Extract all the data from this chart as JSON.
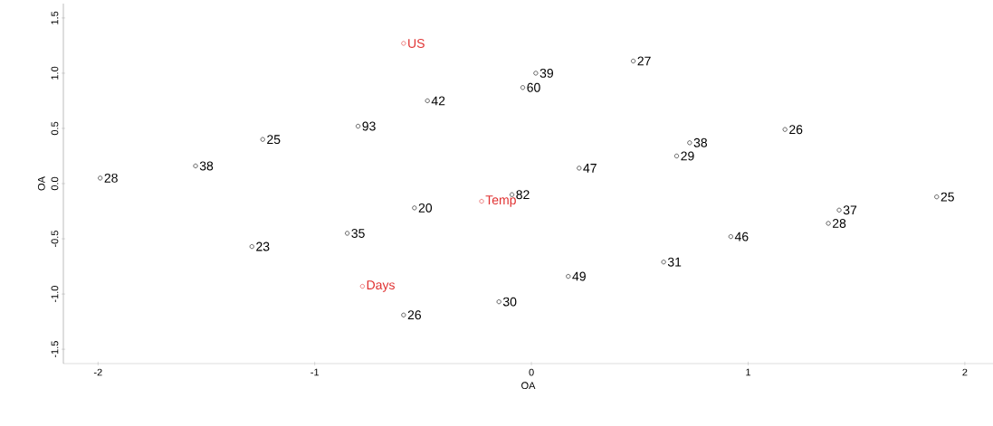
{
  "chart_data": {
    "type": "scatter",
    "xlabel": "OA",
    "ylabel": "OA",
    "xlim": [
      -2.16,
      2.13
    ],
    "ylim": [
      -1.63,
      1.63
    ],
    "xticks": [
      -2,
      -1,
      0,
      1,
      2
    ],
    "yticks": [
      {
        "value": -1.5,
        "label": "-1.5"
      },
      {
        "value": -1.0,
        "label": "-1.0"
      },
      {
        "value": -0.5,
        "label": "-0.5"
      },
      {
        "value": 0.0,
        "label": "0.0"
      },
      {
        "value": 0.5,
        "label": "0.5"
      },
      {
        "value": 1.0,
        "label": "1.0"
      },
      {
        "value": 1.5,
        "label": "1.5"
      }
    ],
    "marker": "circle",
    "grid": false,
    "series": [
      {
        "color": "#000000",
        "x": [
          -0.48,
          -0.8,
          -1.24,
          -1.55,
          -1.99,
          0.02,
          -0.04,
          0.47,
          1.17,
          0.73,
          0.67,
          0.22,
          -0.09,
          -0.54,
          -0.85,
          -1.29,
          -0.59,
          -0.15,
          0.17,
          0.61,
          0.92,
          1.37,
          1.42,
          1.87
        ],
        "values": [
          0.75,
          0.52,
          0.4,
          0.16,
          0.05,
          1.0,
          0.87,
          1.11,
          0.49,
          0.37,
          0.25,
          0.14,
          -0.1,
          -0.22,
          -0.45,
          -0.57,
          -1.19,
          -1.07,
          -0.84,
          -0.71,
          -0.48,
          -0.36,
          -0.24,
          -0.12
        ]
      },
      {
        "color": "#e03030",
        "x": [
          -0.59,
          -0.23,
          -0.78
        ],
        "values": [
          1.27,
          -0.16,
          -0.93
        ]
      }
    ],
    "annotations": [
      {
        "text": "42",
        "x": -0.48,
        "y": 0.75
      },
      {
        "text": "93",
        "x": -0.8,
        "y": 0.52
      },
      {
        "text": "25",
        "x": -1.24,
        "y": 0.4
      },
      {
        "text": "38",
        "x": -1.55,
        "y": 0.16
      },
      {
        "text": "28",
        "x": -1.99,
        "y": 0.05
      },
      {
        "text": "39",
        "x": 0.02,
        "y": 1.0
      },
      {
        "text": "60",
        "x": -0.04,
        "y": 0.87
      },
      {
        "text": "27",
        "x": 0.47,
        "y": 1.11
      },
      {
        "text": "26",
        "x": 1.17,
        "y": 0.49
      },
      {
        "text": "38",
        "x": 0.73,
        "y": 0.37
      },
      {
        "text": "29",
        "x": 0.67,
        "y": 0.25
      },
      {
        "text": "47",
        "x": 0.22,
        "y": 0.14
      },
      {
        "text": "82",
        "x": -0.09,
        "y": -0.1
      },
      {
        "text": "20",
        "x": -0.54,
        "y": -0.22
      },
      {
        "text": "35",
        "x": -0.85,
        "y": -0.45
      },
      {
        "text": "23",
        "x": -1.29,
        "y": -0.57
      },
      {
        "text": "26",
        "x": -0.59,
        "y": -1.19
      },
      {
        "text": "30",
        "x": -0.15,
        "y": -1.07
      },
      {
        "text": "49",
        "x": 0.17,
        "y": -0.84
      },
      {
        "text": "31",
        "x": 0.61,
        "y": -0.71
      },
      {
        "text": "46",
        "x": 0.92,
        "y": -0.48
      },
      {
        "text": "28",
        "x": 1.37,
        "y": -0.36
      },
      {
        "text": "37",
        "x": 1.42,
        "y": -0.24
      },
      {
        "text": "25",
        "x": 1.87,
        "y": -0.12
      },
      {
        "text": "US",
        "x": -0.59,
        "y": 1.27
      },
      {
        "text": "Temp",
        "x": -0.23,
        "y": -0.16
      },
      {
        "text": "Days",
        "x": -0.78,
        "y": -0.93
      }
    ]
  }
}
